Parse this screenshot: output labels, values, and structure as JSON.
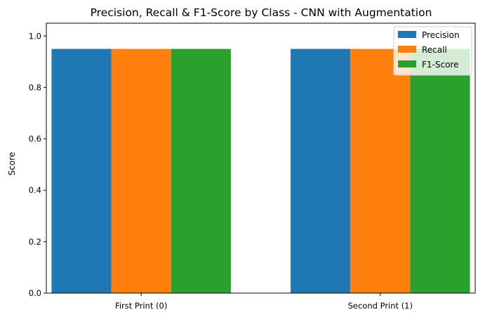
{
  "chart_data": {
    "type": "bar",
    "title": "Precision, Recall & F1-Score by Class - CNN with Augmentation",
    "xlabel": "",
    "ylabel": "Score",
    "categories": [
      "First Print (0)",
      "Second Print (1)"
    ],
    "series": [
      {
        "name": "Precision",
        "values": [
          0.95,
          0.95
        ],
        "color": "#1f77b4"
      },
      {
        "name": "Recall",
        "values": [
          0.95,
          0.95
        ],
        "color": "#ff7f0e"
      },
      {
        "name": "F1-Score",
        "values": [
          0.95,
          0.95
        ],
        "color": "#2ca02c"
      }
    ],
    "ylim": [
      0,
      1.05
    ],
    "yticks": [
      0.0,
      0.2,
      0.4,
      0.6,
      0.8,
      1.0
    ],
    "ytick_labels": [
      "0.0",
      "0.2",
      "0.4",
      "0.6",
      "0.8",
      "1.0"
    ],
    "grid": false,
    "legend_position": "top-right"
  }
}
